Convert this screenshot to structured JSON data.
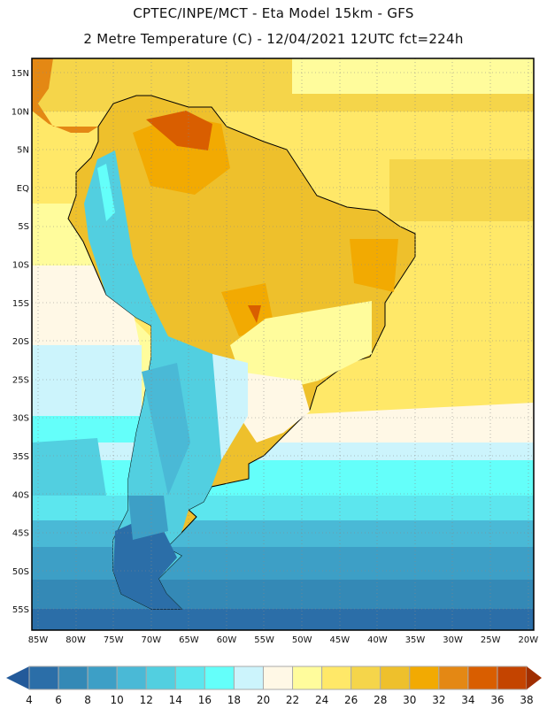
{
  "header": {
    "title": "CPTEC/INPE/MCT -  Eta Model 15km - GFS",
    "subtitle": "2 Metre Temperature (C) - 12/04/2021 12UTC fct=224h"
  },
  "axes": {
    "lat_labels": [
      "15N",
      "10N",
      "5N",
      "EQ",
      "5S",
      "10S",
      "15S",
      "20S",
      "25S",
      "30S",
      "35S",
      "40S",
      "45S",
      "50S",
      "55S"
    ],
    "lon_labels": [
      "85W",
      "80W",
      "75W",
      "70W",
      "65W",
      "60W",
      "55W",
      "50W",
      "45W",
      "40W",
      "35W",
      "30W",
      "25W",
      "20W"
    ]
  },
  "colorbar": {
    "labels": [
      "4",
      "6",
      "8",
      "10",
      "12",
      "14",
      "16",
      "18",
      "20",
      "22",
      "24",
      "26",
      "28",
      "30",
      "32",
      "34",
      "36",
      "38"
    ],
    "under_color": "#235a9a",
    "over_color": "#a02e00",
    "colors": [
      "#2b6ea8",
      "#3489b6",
      "#3d9fc6",
      "#4ab9d6",
      "#52cfe0",
      "#5ce6ee",
      "#64fffa",
      "#ccf4fc",
      "#fff8e6",
      "#fffc9c",
      "#ffe868",
      "#f5d54a",
      "#eec02c",
      "#f2aa02",
      "#e48814",
      "#d95e00",
      "#c44400"
    ]
  }
}
